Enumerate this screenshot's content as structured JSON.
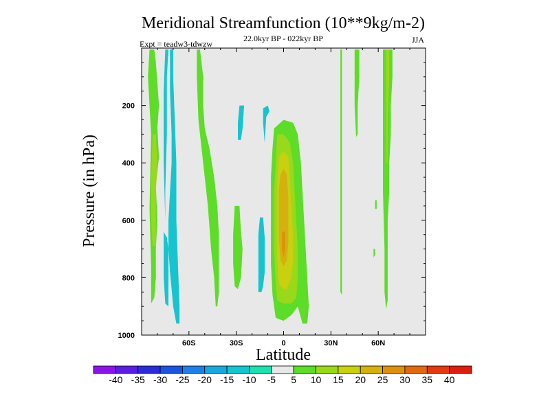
{
  "chart_data": {
    "type": "heatmap",
    "title": "Meridional Streamfunction (10**9kg/m-2)",
    "subtitle_left": "Expt = teadw3-tdwzw",
    "subtitle_center": "22.0kyr BP - 022kyr BP",
    "subtitle_right": "JJA",
    "xlabel": "Latitude",
    "ylabel": "Pressure (in hPa)",
    "xlim": [
      -90,
      90
    ],
    "ylim": [
      1000,
      0
    ],
    "x_ticks": [
      {
        "value": -60,
        "label": "60S"
      },
      {
        "value": -30,
        "label": "30S"
      },
      {
        "value": 0,
        "label": "0"
      },
      {
        "value": 30,
        "label": "30N"
      },
      {
        "value": 60,
        "label": "60N"
      }
    ],
    "y_ticks": [
      {
        "value": 200,
        "label": "200"
      },
      {
        "value": 400,
        "label": "400"
      },
      {
        "value": 600,
        "label": "600"
      },
      {
        "value": 800,
        "label": "800"
      },
      {
        "value": 1000,
        "label": "1000"
      }
    ],
    "background_color": "#e8e8e8",
    "colorbar": {
      "labels": [
        "-40",
        "-35",
        "-30",
        "-25",
        "-20",
        "-15",
        "-10",
        "-5",
        "5",
        "10",
        "15",
        "20",
        "25",
        "30",
        "35",
        "40"
      ],
      "colors": [
        "#8c14e6",
        "#5a1ee0",
        "#2b2bd8",
        "#1a55de",
        "#1e80e6",
        "#1aa8dc",
        "#16c4d0",
        "#1ee0b0",
        "#e8e8e8",
        "#5ddc28",
        "#9ad81c",
        "#c8d010",
        "#d4b010",
        "#dc9010",
        "#e06a10",
        "#e03a10",
        "#dc1e10"
      ]
    },
    "contour_regions": [
      {
        "level": 10,
        "color": "#5ddc28",
        "points": [
          [
            -85,
            5
          ],
          [
            -82,
            5
          ],
          [
            -81,
            50
          ],
          [
            -80,
            120
          ],
          [
            -79,
            200
          ],
          [
            -80,
            280
          ],
          [
            -79,
            380
          ],
          [
            -81,
            480
          ],
          [
            -80,
            600
          ],
          [
            -81,
            700
          ],
          [
            -81,
            800
          ],
          [
            -82,
            870
          ],
          [
            -84,
            890
          ],
          [
            -84,
            760
          ],
          [
            -85,
            560
          ],
          [
            -84,
            300
          ],
          [
            -86,
            100
          ]
        ]
      },
      {
        "level": 15,
        "color": "#9ad81c",
        "points": [
          [
            -83,
            300
          ],
          [
            -81,
            300
          ],
          [
            -80,
            400
          ],
          [
            -81,
            500
          ],
          [
            -81,
            620
          ],
          [
            -81,
            690
          ],
          [
            -83,
            690
          ],
          [
            -84,
            600
          ],
          [
            -84,
            450
          ]
        ]
      },
      {
        "level": -10,
        "color": "#16c4d0",
        "points": [
          [
            -75,
            5
          ],
          [
            -73,
            5
          ],
          [
            -74,
            100
          ],
          [
            -74,
            300
          ],
          [
            -75,
            500
          ],
          [
            -75,
            600
          ],
          [
            -76,
            400
          ],
          [
            -76,
            150
          ]
        ]
      },
      {
        "level": -10,
        "color": "#16c4d0",
        "points": [
          [
            -72,
            5
          ],
          [
            -70,
            5
          ],
          [
            -70,
            100
          ],
          [
            -69,
            250
          ],
          [
            -68,
            400
          ],
          [
            -68,
            600
          ],
          [
            -67,
            750
          ],
          [
            -66,
            900
          ],
          [
            -66,
            960
          ],
          [
            -68,
            960
          ],
          [
            -70,
            900
          ],
          [
            -72,
            780
          ],
          [
            -73,
            700
          ],
          [
            -73,
            600
          ],
          [
            -72,
            500
          ],
          [
            -71,
            400
          ],
          [
            -71,
            300
          ],
          [
            -72,
            150
          ]
        ]
      },
      {
        "level": -10,
        "color": "#16c4d0",
        "points": [
          [
            -76,
            640
          ],
          [
            -74,
            660
          ],
          [
            -73,
            700
          ],
          [
            -73,
            900
          ],
          [
            -75,
            890
          ],
          [
            -76,
            800
          ]
        ]
      },
      {
        "level": 10,
        "color": "#5ddc28",
        "points": [
          [
            -55,
            5
          ],
          [
            -53,
            5
          ],
          [
            -51,
            100
          ],
          [
            -51,
            200
          ],
          [
            -50,
            280
          ],
          [
            -47,
            350
          ],
          [
            -44,
            450
          ],
          [
            -42,
            550
          ],
          [
            -41,
            650
          ],
          [
            -41,
            750
          ],
          [
            -41,
            850
          ],
          [
            -42,
            900
          ],
          [
            -43,
            900
          ],
          [
            -44,
            800
          ],
          [
            -46,
            700
          ],
          [
            -48,
            550
          ],
          [
            -50,
            450
          ],
          [
            -52,
            350
          ],
          [
            -54,
            250
          ],
          [
            -55,
            100
          ]
        ]
      },
      {
        "level": 10,
        "color": "#5ddc28",
        "points": [
          [
            -31,
            550
          ],
          [
            -28,
            550
          ],
          [
            -27,
            640
          ],
          [
            -26,
            700
          ],
          [
            -27,
            800
          ],
          [
            -29,
            840
          ],
          [
            -31,
            830
          ],
          [
            -32,
            750
          ],
          [
            -32,
            650
          ]
        ]
      },
      {
        "level": -10,
        "color": "#16c4d0",
        "points": [
          [
            -28,
            200
          ],
          [
            -25,
            200
          ],
          [
            -26,
            280
          ],
          [
            -27,
            320
          ],
          [
            -29,
            320
          ],
          [
            -29,
            260
          ]
        ]
      },
      {
        "level": -10,
        "color": "#16c4d0",
        "points": [
          [
            -15,
            590
          ],
          [
            -13,
            590
          ],
          [
            -12,
            660
          ],
          [
            -12,
            780
          ],
          [
            -13,
            830
          ],
          [
            -14,
            850
          ],
          [
            -16,
            850
          ],
          [
            -16,
            730
          ],
          [
            -16,
            650
          ]
        ]
      },
      {
        "level": -10,
        "color": "#16c4d0",
        "points": [
          [
            -13,
            210
          ],
          [
            -10,
            200
          ],
          [
            -9,
            220
          ],
          [
            -11,
            240
          ],
          [
            -12,
            330
          ],
          [
            -13,
            260
          ]
        ]
      },
      {
        "level": 10,
        "color": "#5ddc28",
        "points": [
          [
            -6,
            280
          ],
          [
            0,
            250
          ],
          [
            6,
            260
          ],
          [
            9,
            300
          ],
          [
            11,
            400
          ],
          [
            12,
            500
          ],
          [
            13,
            600
          ],
          [
            14,
            700
          ],
          [
            15,
            800
          ],
          [
            16,
            900
          ],
          [
            15,
            960
          ],
          [
            12,
            960
          ],
          [
            9,
            900
          ],
          [
            5,
            930
          ],
          [
            0,
            950
          ],
          [
            -5,
            940
          ],
          [
            -7,
            860
          ],
          [
            -8,
            750
          ],
          [
            -8,
            650
          ],
          [
            -8,
            550
          ],
          [
            -8,
            450
          ],
          [
            -7,
            350
          ]
        ]
      },
      {
        "level": 15,
        "color": "#9ad81c",
        "points": [
          [
            -4,
            300
          ],
          [
            0,
            300
          ],
          [
            4,
            330
          ],
          [
            6,
            400
          ],
          [
            7,
            500
          ],
          [
            8,
            600
          ],
          [
            9,
            700
          ],
          [
            9,
            800
          ],
          [
            8,
            870
          ],
          [
            5,
            890
          ],
          [
            0,
            890
          ],
          [
            -4,
            880
          ],
          [
            -5,
            820
          ],
          [
            -6,
            700
          ],
          [
            -6,
            600
          ],
          [
            -6,
            500
          ],
          [
            -5,
            400
          ]
        ]
      },
      {
        "level": 20,
        "color": "#c8d010",
        "points": [
          [
            -3,
            380
          ],
          [
            0,
            360
          ],
          [
            3,
            380
          ],
          [
            4,
            460
          ],
          [
            5,
            560
          ],
          [
            6,
            650
          ],
          [
            6,
            740
          ],
          [
            5,
            800
          ],
          [
            2,
            840
          ],
          [
            0,
            840
          ],
          [
            -3,
            820
          ],
          [
            -4,
            740
          ],
          [
            -4,
            640
          ],
          [
            -4,
            540
          ],
          [
            -4,
            450
          ]
        ]
      },
      {
        "level": 25,
        "color": "#d4b010",
        "points": [
          [
            -2,
            440
          ],
          [
            0,
            420
          ],
          [
            2,
            440
          ],
          [
            3,
            520
          ],
          [
            3,
            600
          ],
          [
            3,
            680
          ],
          [
            2,
            740
          ],
          [
            0,
            760
          ],
          [
            -2,
            740
          ],
          [
            -3,
            660
          ],
          [
            -3,
            580
          ],
          [
            -3,
            500
          ]
        ]
      },
      {
        "level": 30,
        "color": "#dc9010",
        "points": [
          [
            -1,
            640
          ],
          [
            1,
            640
          ],
          [
            1,
            700
          ],
          [
            0,
            730
          ],
          [
            -1,
            700
          ]
        ]
      },
      {
        "level": 10,
        "color": "#5ddc28",
        "points": [
          [
            36,
            5
          ],
          [
            37,
            5
          ],
          [
            37,
            100
          ],
          [
            37,
            300
          ],
          [
            37,
            500
          ],
          [
            37,
            650
          ],
          [
            37,
            800
          ],
          [
            37,
            860
          ],
          [
            36,
            850
          ],
          [
            36,
            700
          ],
          [
            36,
            500
          ],
          [
            36,
            300
          ],
          [
            36,
            100
          ]
        ]
      },
      {
        "level": 10,
        "color": "#5ddc28",
        "points": [
          [
            45,
            5
          ],
          [
            48,
            5
          ],
          [
            48,
            100
          ],
          [
            47,
            200
          ],
          [
            47,
            300
          ],
          [
            46,
            310
          ],
          [
            45,
            200
          ],
          [
            45,
            100
          ]
        ]
      },
      {
        "level": 10,
        "color": "#5ddc28",
        "points": [
          [
            63,
            5
          ],
          [
            69,
            5
          ],
          [
            69,
            100
          ],
          [
            68,
            200
          ],
          [
            68,
            300
          ],
          [
            67,
            400
          ],
          [
            67,
            500
          ],
          [
            66,
            600
          ],
          [
            66,
            700
          ],
          [
            66,
            800
          ],
          [
            66,
            880
          ],
          [
            65,
            910
          ],
          [
            64,
            850
          ],
          [
            64,
            700
          ],
          [
            63,
            500
          ],
          [
            63,
            300
          ],
          [
            63,
            100
          ]
        ]
      },
      {
        "level": 15,
        "color": "#9ad81c",
        "points": [
          [
            65,
            5
          ],
          [
            67,
            5
          ],
          [
            67,
            100
          ],
          [
            66,
            250
          ],
          [
            66,
            400
          ],
          [
            65,
            400
          ],
          [
            65,
            250
          ],
          [
            65,
            100
          ]
        ]
      },
      {
        "level": 10,
        "color": "#5ddc28",
        "points": [
          [
            57,
            700
          ],
          [
            58,
            700
          ],
          [
            58,
            720
          ],
          [
            57,
            730
          ]
        ]
      },
      {
        "level": 10,
        "color": "#5ddc28",
        "points": [
          [
            58,
            530
          ],
          [
            59,
            530
          ],
          [
            59,
            560
          ],
          [
            58,
            560
          ]
        ]
      }
    ]
  }
}
